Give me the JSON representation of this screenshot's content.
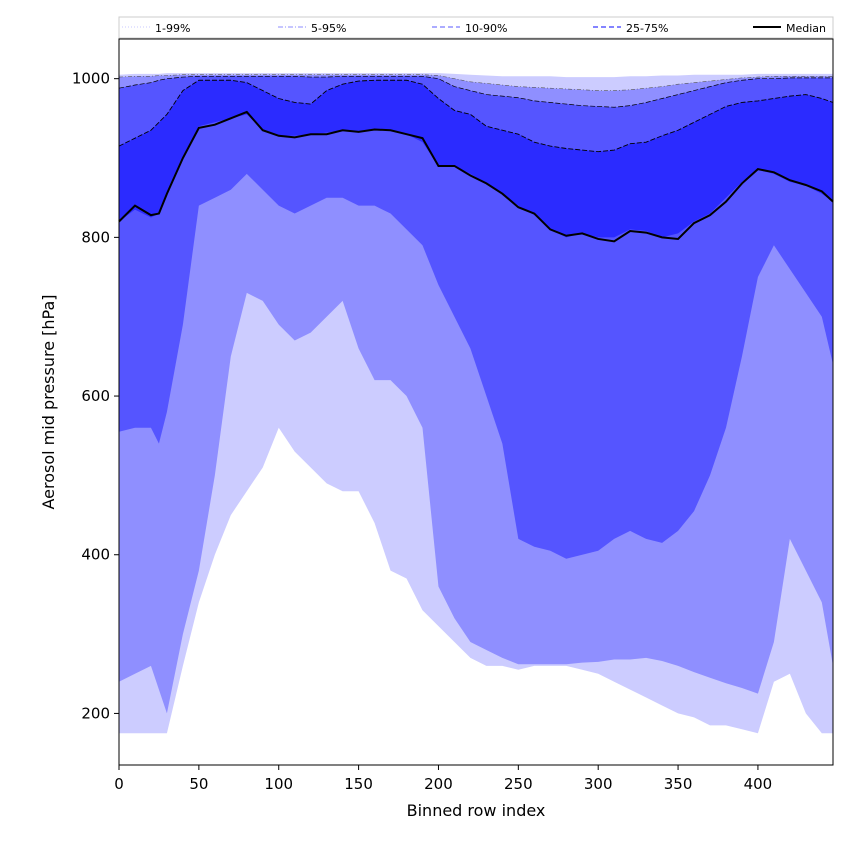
{
  "chart_data": {
    "type": "area",
    "title": "",
    "xlabel": "Binned row index",
    "ylabel": "Aerosol mid pressure [hPa]",
    "xlim": [
      0,
      447
    ],
    "ylim": [
      135,
      1050
    ],
    "xticks": [
      0,
      50,
      100,
      150,
      200,
      250,
      300,
      350,
      400
    ],
    "yticks": [
      200,
      400,
      600,
      800,
      1000
    ],
    "grid": false,
    "legend_position": "top (above plot, single row)",
    "legend": [
      {
        "label": "1-99%",
        "style": "dotted",
        "color": "#c8c8ff"
      },
      {
        "label": "5-95%",
        "style": "dashdot",
        "color": "#8c8cff"
      },
      {
        "label": "10-90%",
        "style": "dashed",
        "color": "#7a7aff"
      },
      {
        "label": "25-75%",
        "style": "dashed",
        "color": "#3a3aff"
      },
      {
        "label": "Median",
        "style": "solid",
        "color": "#000000"
      }
    ],
    "x": [
      0,
      10,
      20,
      25,
      30,
      40,
      50,
      60,
      70,
      80,
      90,
      100,
      110,
      120,
      130,
      140,
      150,
      160,
      170,
      180,
      190,
      200,
      210,
      220,
      230,
      240,
      250,
      260,
      270,
      280,
      290,
      300,
      310,
      320,
      330,
      340,
      350,
      360,
      370,
      380,
      390,
      400,
      410,
      420,
      430,
      440,
      447
    ],
    "series": [
      {
        "name": "p1",
        "color": "#ffffff",
        "values": [
          175,
          175,
          175,
          175,
          175,
          175,
          175,
          175,
          175,
          175,
          190,
          215,
          210,
          210,
          215,
          230,
          230,
          235,
          230,
          235,
          240,
          240,
          235,
          230,
          230,
          225,
          225,
          220,
          220,
          215,
          210,
          200,
          200,
          190,
          180,
          175,
          175,
          175,
          175,
          175,
          175,
          175,
          175,
          175,
          175,
          175,
          175
        ]
      },
      {
        "name": "p5",
        "color": "#ccccff",
        "values": [
          175,
          175,
          175,
          175,
          175,
          260,
          340,
          400,
          450,
          480,
          510,
          560,
          530,
          510,
          490,
          480,
          480,
          440,
          380,
          370,
          330,
          310,
          290,
          270,
          260,
          260,
          255,
          260,
          260,
          260,
          255,
          250,
          240,
          230,
          220,
          210,
          200,
          195,
          185,
          185,
          180,
          175,
          240,
          250,
          200,
          175,
          175
        ]
      },
      {
        "name": "p10",
        "color": "#8f8fff",
        "values": [
          240,
          250,
          260,
          230,
          200,
          300,
          380,
          500,
          650,
          730,
          720,
          690,
          670,
          680,
          700,
          720,
          660,
          620,
          620,
          600,
          560,
          360,
          320,
          290,
          280,
          270,
          262,
          262,
          262,
          262,
          264,
          265,
          268,
          268,
          270,
          266,
          260,
          252,
          245,
          238,
          232,
          225,
          290,
          420,
          380,
          340,
          260
        ]
      },
      {
        "name": "p25",
        "color": "#5555ff",
        "values": [
          555,
          560,
          560,
          540,
          580,
          690,
          840,
          850,
          860,
          880,
          860,
          840,
          830,
          840,
          850,
          850,
          840,
          840,
          830,
          810,
          790,
          740,
          700,
          660,
          600,
          540,
          420,
          410,
          405,
          395,
          400,
          405,
          420,
          430,
          420,
          415,
          430,
          455,
          500,
          560,
          650,
          750,
          790,
          760,
          730,
          700,
          640
        ]
      },
      {
        "name": "p50",
        "color": "#2b2bff",
        "values": [
          820,
          835,
          825,
          830,
          855,
          900,
          940,
          945,
          950,
          955,
          935,
          928,
          928,
          930,
          932,
          935,
          933,
          935,
          935,
          930,
          920,
          890,
          890,
          880,
          868,
          855,
          840,
          828,
          810,
          800,
          805,
          800,
          800,
          810,
          808,
          800,
          805,
          820,
          830,
          850,
          870,
          885,
          880,
          870,
          865,
          855,
          845
        ]
      },
      {
        "name": "p75",
        "color": "#5555ff",
        "values": [
          915,
          925,
          935,
          945,
          955,
          985,
          998,
          998,
          998,
          995,
          985,
          975,
          970,
          968,
          985,
          993,
          997,
          998,
          998,
          998,
          993,
          975,
          960,
          955,
          940,
          935,
          930,
          920,
          915,
          912,
          910,
          908,
          910,
          918,
          920,
          928,
          935,
          945,
          955,
          965,
          970,
          972,
          975,
          978,
          980,
          975,
          970
        ]
      },
      {
        "name": "p90",
        "color": "#8f8fff",
        "values": [
          988,
          992,
          995,
          998,
          1000,
          1002,
          1003,
          1003,
          1003,
          1003,
          1003,
          1003,
          1003,
          1002,
          1002,
          1003,
          1003,
          1003,
          1003,
          1003,
          1003,
          1000,
          990,
          985,
          980,
          978,
          976,
          972,
          970,
          968,
          966,
          965,
          964,
          966,
          970,
          975,
          980,
          985,
          990,
          995,
          998,
          1000,
          1000,
          1001,
          1001,
          1001,
          1001
        ]
      },
      {
        "name": "p95",
        "color": "#ccccff",
        "values": [
          1002,
          1003,
          1003,
          1004,
          1004,
          1005,
          1005,
          1005,
          1005,
          1005,
          1005,
          1005,
          1005,
          1005,
          1005,
          1005,
          1005,
          1005,
          1005,
          1005,
          1005,
          1004,
          1000,
          996,
          994,
          992,
          990,
          989,
          988,
          987,
          986,
          985,
          985,
          986,
          988,
          990,
          993,
          995,
          997,
          999,
          1001,
          1002,
          1003,
          1003,
          1003,
          1003,
          1003
        ]
      },
      {
        "name": "p99",
        "color": "#ffffff",
        "values": [
          1005,
          1006,
          1006,
          1006,
          1007,
          1007,
          1007,
          1007,
          1007,
          1007,
          1007,
          1007,
          1007,
          1007,
          1007,
          1007,
          1007,
          1007,
          1007,
          1007,
          1007,
          1007,
          1006,
          1005,
          1004,
          1003,
          1003,
          1003,
          1003,
          1002,
          1002,
          1002,
          1002,
          1003,
          1003,
          1004,
          1004,
          1005,
          1005,
          1005,
          1005,
          1006,
          1006,
          1006,
          1006,
          1006,
          1006
        ]
      }
    ],
    "median": [
      820,
      840,
      828,
      830,
      855,
      900,
      938,
      942,
      950,
      958,
      935,
      928,
      926,
      930,
      930,
      935,
      933,
      936,
      935,
      930,
      925,
      890,
      890,
      878,
      868,
      855,
      838,
      830,
      810,
      802,
      805,
      798,
      795,
      808,
      806,
      800,
      798,
      818,
      828,
      845,
      868,
      886,
      882,
      872,
      866,
      858,
      845
    ]
  }
}
